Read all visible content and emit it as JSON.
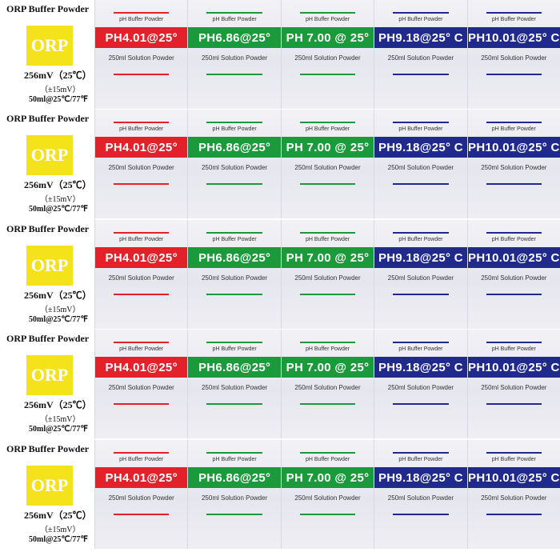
{
  "orp": {
    "title": "ORP Buffer Powder",
    "badge": "ORP",
    "mv": "256mV（25℃）",
    "tolerance": "（±15mV）",
    "volume": "50ml@25℃/77℉"
  },
  "packets": [
    {
      "id": "ph401",
      "sub": "pH Buffer Powder",
      "label": "PH4.01@25°",
      "solution": "250ml Solution Powder",
      "color": "#e3212b"
    },
    {
      "id": "ph686",
      "sub": "pH Buffer Powder",
      "label": "PH6.86@25°",
      "solution": "250ml Solution Powder",
      "color": "#1a9a3a"
    },
    {
      "id": "ph700",
      "sub": "pH Buffer Powder",
      "label": "PH 7.00 @ 25°",
      "solution": "250ml Solution Powder",
      "color": "#1a9a3a"
    },
    {
      "id": "ph918",
      "sub": "pH Buffer Powder",
      "label": "PH9.18@25° C",
      "solution": "250ml Solution Powder",
      "color": "#1f2a8c"
    },
    {
      "id": "ph1001",
      "sub": "pH Buffer Powder",
      "label": "PH10.01@25° C",
      "solution": "250ml Solution Powder",
      "color": "#1f2a8c"
    }
  ],
  "row_count": 5
}
